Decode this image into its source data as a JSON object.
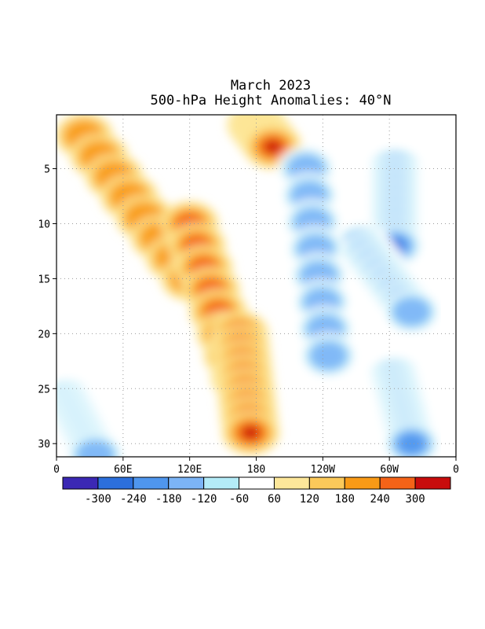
{
  "chart_data": {
    "type": "heatmap",
    "title": "March 2023",
    "subtitle": "500-hPa Height Anomalies: 40°N",
    "x_ticks": [
      "0",
      "60E",
      "120E",
      "180",
      "120W",
      "60W",
      "0"
    ],
    "y_ticks": [
      "5",
      "10",
      "15",
      "20",
      "25",
      "30"
    ],
    "y_range": [
      1,
      31
    ],
    "x_range_deg": [
      0,
      360
    ],
    "levels": [
      "-300",
      "-240",
      "-180",
      "-120",
      "-60",
      "60",
      "120",
      "180",
      "240",
      "300"
    ],
    "colors": [
      "#3b28b4",
      "#2c6fdc",
      "#4f96ee",
      "#7cb4f6",
      "#b4ecf8",
      "#ffffff",
      "#fde79a",
      "#fbc95a",
      "#f99a16",
      "#f46318",
      "#c80c0c"
    ],
    "grid": true,
    "features": [
      {
        "type": "ridge",
        "from": [
          25,
          2
        ],
        "to": [
          120,
          15
        ],
        "value": 180
      },
      {
        "type": "ridge",
        "from": [
          120,
          10
        ],
        "to": [
          165,
          24
        ],
        "value": 240
      },
      {
        "type": "ridge",
        "from": [
          165,
          20
        ],
        "to": [
          175,
          29
        ],
        "value": 300
      },
      {
        "type": "ridge",
        "from": [
          180,
          1
        ],
        "to": [
          195,
          3
        ],
        "value": 300
      },
      {
        "type": "trough",
        "from": [
          305,
          5
        ],
        "to": [
          305,
          12
        ],
        "value": -300
      },
      {
        "type": "trough",
        "from": [
          275,
          12
        ],
        "to": [
          320,
          18
        ],
        "value": -180
      },
      {
        "type": "trough",
        "from": [
          225,
          5
        ],
        "to": [
          245,
          22
        ],
        "value": -180
      },
      {
        "type": "trough",
        "from": [
          305,
          24
        ],
        "to": [
          320,
          30
        ],
        "value": -240
      },
      {
        "type": "trough",
        "from": [
          10,
          26
        ],
        "to": [
          35,
          31
        ],
        "value": -180
      }
    ]
  }
}
